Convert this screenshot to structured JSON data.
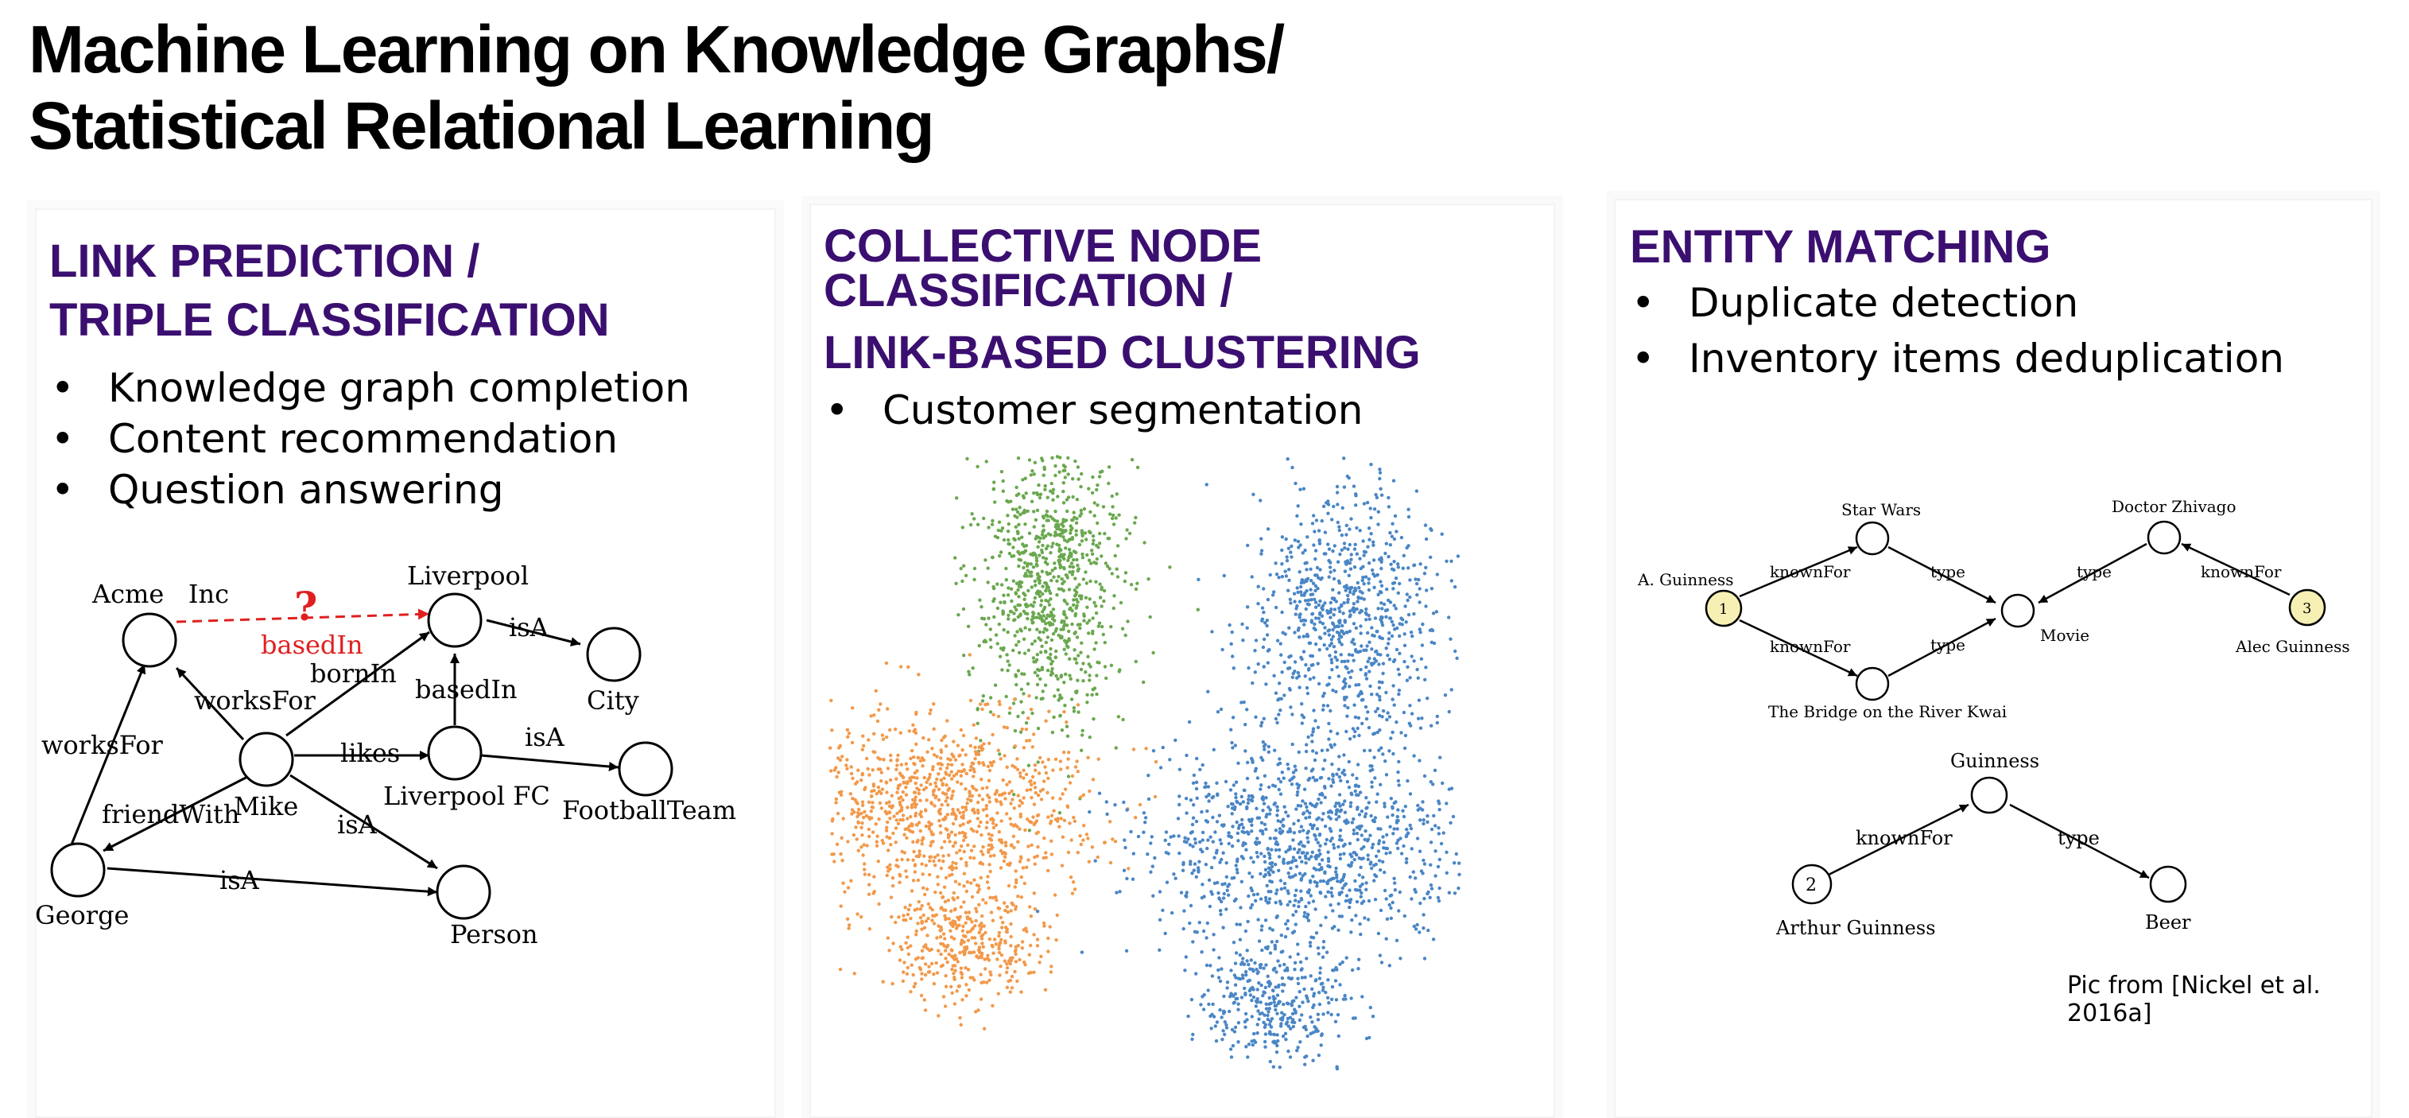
{
  "title": {
    "line1": "Machine Learning on Knowledge Graphs/",
    "line2": "Statistical Relational Learning"
  },
  "panels": [
    {
      "heading": [
        "LINK PREDICTION /",
        "TRIPLE CLASSIFICATION"
      ],
      "bullets": [
        "Knowledge graph completion",
        "Content recommendation",
        "Question answering"
      ],
      "diagram": {
        "nodes": [
          "Acme   Inc",
          "Liverpool",
          "City",
          "Mike",
          "Liverpool FC",
          "FootballTeam",
          "George",
          "Person"
        ],
        "edges": [
          "isA",
          "bornIn",
          "basedIn",
          "worksFor",
          "likes",
          "isA",
          "worksFor",
          "friendWith",
          "isA",
          "isA"
        ],
        "predicted_edge": {
          "label": "basedIn",
          "mark": "?"
        }
      }
    },
    {
      "heading": [
        "COLLECTIVE NODE",
        "CLASSIFICATION /",
        "LINK-BASED CLUSTERING"
      ],
      "bullets": [
        "Customer segmentation"
      ],
      "clusters": [
        "#6aa84f",
        "#f2994a",
        "#4a86c5"
      ]
    },
    {
      "heading": [
        "ENTITY MATCHING"
      ],
      "bullets": [
        "Duplicate detection",
        "Inventory items deduplication"
      ],
      "diagram": {
        "top": {
          "nodes": [
            "A. Guinness",
            "Star Wars",
            "The Bridge on the River Kwai",
            "Movie",
            "Doctor Zhivago",
            "Alec Guinness"
          ],
          "numbers": [
            "1",
            "3"
          ],
          "edges": [
            "knownFor",
            "knownFor",
            "type",
            "type",
            "type",
            "knownFor"
          ]
        },
        "bottom": {
          "nodes": [
            "Guinness",
            "Arthur Guinness",
            "Beer"
          ],
          "numbers": [
            "2"
          ],
          "edges": [
            "knownFor",
            "type"
          ]
        }
      },
      "credit": "Pic from [Nickel et al. 2016a]"
    }
  ],
  "colors": {
    "heading": "#3b0f70",
    "predicted": "#e02020",
    "highlight_node": "#f7f0b4"
  }
}
